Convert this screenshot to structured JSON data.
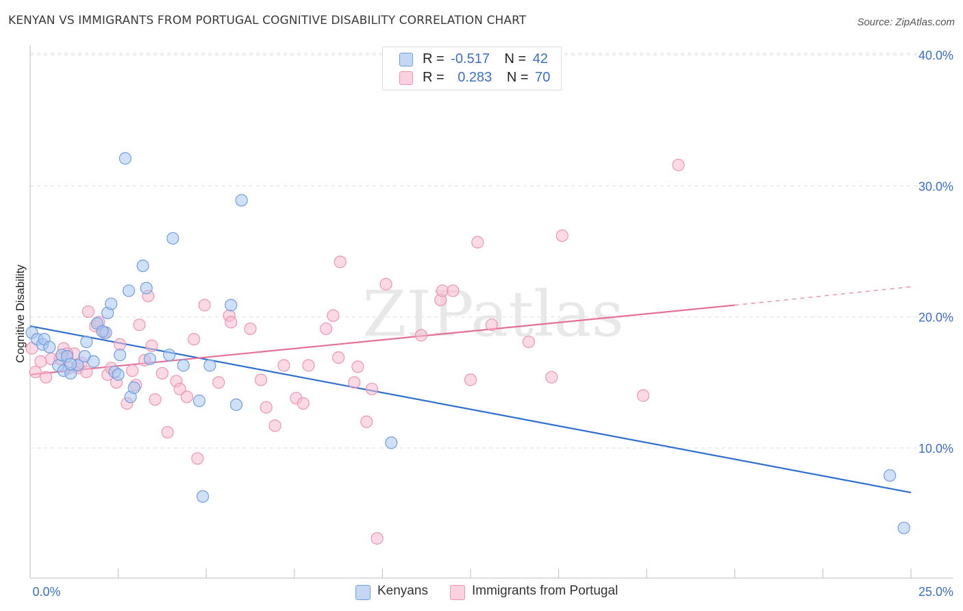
{
  "title": "KENYAN VS IMMIGRANTS FROM PORTUGAL COGNITIVE DISABILITY CORRELATION CHART",
  "source": "Source: ZipAtlas.com",
  "watermark": "ZIPatlas",
  "legend_stats": [
    {
      "r_label": "R =",
      "r_value": "-0.517",
      "n_label": "N =",
      "n_value": "42"
    },
    {
      "r_label": "R =",
      "r_value": "0.283",
      "n_label": "N =",
      "n_value": "70"
    }
  ],
  "colors": {
    "blue_fill": "#a9c6f0",
    "blue_stroke": "#6f9ee0",
    "blue_line": "#2e6fd2",
    "pink_fill": "#f7bccf",
    "pink_stroke": "#ee94b1",
    "pink_line": "#e46f98",
    "axis_text": "#3b6fc6"
  },
  "chart_data": {
    "type": "scatter",
    "xlabel": "",
    "ylabel": "Cognitive Disability",
    "xlim": [
      0,
      25
    ],
    "ylim": [
      0,
      41
    ],
    "x_tick_labels": [
      "0.0%",
      "25.0%"
    ],
    "y_ticks": [
      10,
      20,
      30,
      40
    ],
    "y_tick_labels": [
      "10.0%",
      "20.0%",
      "30.0%",
      "40.0%"
    ],
    "grid": true,
    "legend_position": "top-center",
    "series": [
      {
        "name": "Kenyans",
        "color": "#a9c6f0",
        "trend": {
          "x0": 0,
          "y0": 19.3,
          "x1": 25,
          "y1": 6.6
        },
        "points": [
          [
            0.05,
            18.8
          ],
          [
            0.2,
            18.3
          ],
          [
            0.35,
            17.9
          ],
          [
            0.4,
            18.3
          ],
          [
            0.55,
            17.7
          ],
          [
            0.8,
            16.3
          ],
          [
            0.9,
            17.1
          ],
          [
            0.95,
            15.9
          ],
          [
            1.05,
            17.0
          ],
          [
            1.15,
            15.7
          ],
          [
            1.35,
            16.3
          ],
          [
            1.55,
            17.0
          ],
          [
            1.6,
            18.1
          ],
          [
            1.8,
            16.6
          ],
          [
            2.15,
            18.8
          ],
          [
            2.2,
            20.3
          ],
          [
            2.3,
            21.0
          ],
          [
            2.4,
            15.8
          ],
          [
            2.55,
            17.1
          ],
          [
            2.7,
            32.1
          ],
          [
            2.8,
            22.0
          ],
          [
            2.85,
            13.9
          ],
          [
            2.95,
            14.6
          ],
          [
            3.2,
            23.9
          ],
          [
            3.3,
            22.2
          ],
          [
            3.4,
            16.8
          ],
          [
            3.95,
            17.1
          ],
          [
            4.05,
            26.0
          ],
          [
            4.35,
            16.3
          ],
          [
            4.8,
            13.6
          ],
          [
            4.9,
            6.3
          ],
          [
            5.1,
            16.3
          ],
          [
            5.7,
            20.9
          ],
          [
            5.85,
            13.3
          ],
          [
            6.0,
            28.9
          ],
          [
            10.25,
            10.4
          ],
          [
            24.4,
            7.9
          ],
          [
            24.8,
            3.9
          ],
          [
            1.9,
            19.5
          ],
          [
            2.05,
            18.9
          ],
          [
            2.5,
            15.6
          ],
          [
            1.15,
            16.4
          ]
        ]
      },
      {
        "name": "Immigrants from Portugal",
        "color": "#f7bccf",
        "trend": {
          "x0": 0,
          "y0": 15.6,
          "x1": 20.0,
          "y1": 20.9,
          "dash_to_x": 25,
          "dash_to_y": 22.3
        },
        "points": [
          [
            0.05,
            17.6
          ],
          [
            0.15,
            15.8
          ],
          [
            0.3,
            16.6
          ],
          [
            0.45,
            15.4
          ],
          [
            0.6,
            16.8
          ],
          [
            0.85,
            16.8
          ],
          [
            0.95,
            17.6
          ],
          [
            1.1,
            16.1
          ],
          [
            1.25,
            17.2
          ],
          [
            1.35,
            16.1
          ],
          [
            1.45,
            16.5
          ],
          [
            1.6,
            15.8
          ],
          [
            1.65,
            20.4
          ],
          [
            1.85,
            19.3
          ],
          [
            1.95,
            19.6
          ],
          [
            2.1,
            18.8
          ],
          [
            2.2,
            15.6
          ],
          [
            2.3,
            16.1
          ],
          [
            2.45,
            15.0
          ],
          [
            2.55,
            17.9
          ],
          [
            2.75,
            13.4
          ],
          [
            2.9,
            15.9
          ],
          [
            3.0,
            14.8
          ],
          [
            3.1,
            19.4
          ],
          [
            3.25,
            16.7
          ],
          [
            3.35,
            21.6
          ],
          [
            3.45,
            17.8
          ],
          [
            3.55,
            13.7
          ],
          [
            3.75,
            15.7
          ],
          [
            3.9,
            11.2
          ],
          [
            4.15,
            15.1
          ],
          [
            4.25,
            14.5
          ],
          [
            4.45,
            13.9
          ],
          [
            4.65,
            18.3
          ],
          [
            4.75,
            9.2
          ],
          [
            4.95,
            20.9
          ],
          [
            5.35,
            15.0
          ],
          [
            5.65,
            20.1
          ],
          [
            5.7,
            19.6
          ],
          [
            6.25,
            19.1
          ],
          [
            6.55,
            15.2
          ],
          [
            6.7,
            13.1
          ],
          [
            6.95,
            11.7
          ],
          [
            7.2,
            16.3
          ],
          [
            7.55,
            13.8
          ],
          [
            7.75,
            13.4
          ],
          [
            7.9,
            16.3
          ],
          [
            8.4,
            19.1
          ],
          [
            8.6,
            20.1
          ],
          [
            8.75,
            16.9
          ],
          [
            8.8,
            24.2
          ],
          [
            9.2,
            15.0
          ],
          [
            9.3,
            16.2
          ],
          [
            9.55,
            12.0
          ],
          [
            9.7,
            14.5
          ],
          [
            9.85,
            3.1
          ],
          [
            10.1,
            22.5
          ],
          [
            11.1,
            18.6
          ],
          [
            11.65,
            21.3
          ],
          [
            11.7,
            22.0
          ],
          [
            12.0,
            22.0
          ],
          [
            12.5,
            15.2
          ],
          [
            12.7,
            25.7
          ],
          [
            13.1,
            19.4
          ],
          [
            14.15,
            18.1
          ],
          [
            14.8,
            15.4
          ],
          [
            15.1,
            26.2
          ],
          [
            17.4,
            14.0
          ],
          [
            18.4,
            31.6
          ],
          [
            1.05,
            17.2
          ]
        ]
      }
    ]
  },
  "bottom_legend": [
    "Kenyans",
    "Immigrants from Portugal"
  ]
}
